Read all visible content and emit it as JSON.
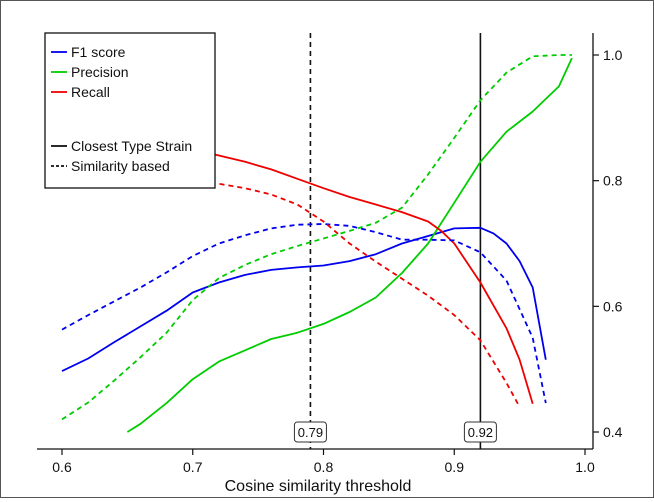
{
  "chart_data": {
    "type": "line",
    "title": "",
    "xlabel": "Cosine similarity threshold",
    "ylabel": "",
    "xlim": [
      0.55,
      1.03
    ],
    "ylim": [
      0.38,
      1.04
    ],
    "x_ticks": [
      "0.6",
      "0.7",
      "0.8",
      "0.9",
      "1.0"
    ],
    "x_tick_values": [
      0.6,
      0.7,
      0.8,
      0.9,
      1.0
    ],
    "y_ticks": [
      "0.4",
      "0.6",
      "0.8",
      "1.0"
    ],
    "y_tick_values": [
      0.4,
      0.6,
      0.8,
      1.0
    ],
    "y_axis_side": "right",
    "grid": false,
    "legend_position": "top-left",
    "series": [
      {
        "name": "F1 score",
        "color": "#0000ee",
        "style": "solid",
        "x": [
          0.6,
          0.62,
          0.64,
          0.66,
          0.68,
          0.7,
          0.72,
          0.74,
          0.76,
          0.78,
          0.8,
          0.82,
          0.84,
          0.86,
          0.88,
          0.9,
          0.92,
          0.93,
          0.94,
          0.95,
          0.96,
          0.97
        ],
        "y": [
          0.497,
          0.517,
          0.543,
          0.568,
          0.593,
          0.622,
          0.638,
          0.65,
          0.658,
          0.662,
          0.665,
          0.672,
          0.683,
          0.7,
          0.712,
          0.724,
          0.725,
          0.716,
          0.7,
          0.672,
          0.63,
          0.515
        ]
      },
      {
        "name": "Precision",
        "color": "#00cc00",
        "style": "solid",
        "x": [
          0.65,
          0.66,
          0.68,
          0.7,
          0.72,
          0.74,
          0.76,
          0.78,
          0.8,
          0.82,
          0.84,
          0.86,
          0.88,
          0.9,
          0.92,
          0.94,
          0.96,
          0.98,
          0.99
        ],
        "y": [
          0.4,
          0.413,
          0.446,
          0.484,
          0.512,
          0.53,
          0.548,
          0.558,
          0.572,
          0.591,
          0.614,
          0.653,
          0.7,
          0.765,
          0.83,
          0.878,
          0.91,
          0.95,
          0.995
        ]
      },
      {
        "name": "Recall",
        "color": "#ee0000",
        "style": "solid",
        "x": [
          0.7,
          0.72,
          0.74,
          0.76,
          0.78,
          0.8,
          0.82,
          0.84,
          0.86,
          0.88,
          0.89,
          0.9,
          0.92,
          0.94,
          0.95,
          0.96
        ],
        "y": [
          0.85,
          0.84,
          0.83,
          0.818,
          0.803,
          0.788,
          0.774,
          0.762,
          0.75,
          0.735,
          0.72,
          0.7,
          0.638,
          0.565,
          0.515,
          0.445
        ]
      },
      {
        "name": "F1 score (similarity based)",
        "color": "#0000ee",
        "style": "dashed",
        "x": [
          0.6,
          0.62,
          0.64,
          0.66,
          0.68,
          0.7,
          0.72,
          0.74,
          0.76,
          0.78,
          0.8,
          0.82,
          0.84,
          0.86,
          0.88,
          0.9,
          0.92,
          0.94,
          0.96,
          0.97
        ],
        "y": [
          0.563,
          0.586,
          0.608,
          0.63,
          0.654,
          0.68,
          0.7,
          0.713,
          0.724,
          0.73,
          0.731,
          0.728,
          0.718,
          0.706,
          0.706,
          0.705,
          0.686,
          0.641,
          0.55,
          0.446
        ]
      },
      {
        "name": "Precision (similarity based)",
        "color": "#00cc00",
        "style": "dashed",
        "x": [
          0.6,
          0.62,
          0.64,
          0.66,
          0.68,
          0.7,
          0.72,
          0.74,
          0.76,
          0.78,
          0.8,
          0.82,
          0.84,
          0.86,
          0.88,
          0.9,
          0.92,
          0.94,
          0.96,
          0.98,
          0.99
        ],
        "y": [
          0.42,
          0.447,
          0.482,
          0.519,
          0.558,
          0.61,
          0.645,
          0.666,
          0.683,
          0.696,
          0.708,
          0.72,
          0.733,
          0.757,
          0.81,
          0.868,
          0.928,
          0.972,
          0.998,
          1.0,
          1.0
        ]
      },
      {
        "name": "Recall (similarity based)",
        "color": "#ee0000",
        "style": "dashed",
        "x": [
          0.7,
          0.72,
          0.74,
          0.76,
          0.78,
          0.8,
          0.82,
          0.84,
          0.86,
          0.88,
          0.9,
          0.92,
          0.94,
          0.95
        ],
        "y": [
          0.8,
          0.795,
          0.788,
          0.778,
          0.762,
          0.735,
          0.7,
          0.671,
          0.644,
          0.617,
          0.586,
          0.546,
          0.478,
          0.44
        ]
      }
    ],
    "legend": {
      "entries": [
        {
          "label": "F1 score",
          "color": "#0000ee",
          "style": "solid"
        },
        {
          "label": "Precision",
          "color": "#00cc00",
          "style": "solid"
        },
        {
          "label": "Recall",
          "color": "#ee0000",
          "style": "solid"
        },
        {
          "label": "Closest Type Strain",
          "color": "#111111",
          "style": "solid"
        },
        {
          "label": "Similarity based",
          "color": "#111111",
          "style": "dashed"
        }
      ]
    },
    "annotations": [
      {
        "label": "0.79",
        "x": 0.79,
        "style": "dashed",
        "color": "#111111"
      },
      {
        "label": "0.92",
        "x": 0.92,
        "style": "solid",
        "color": "#111111"
      }
    ]
  }
}
